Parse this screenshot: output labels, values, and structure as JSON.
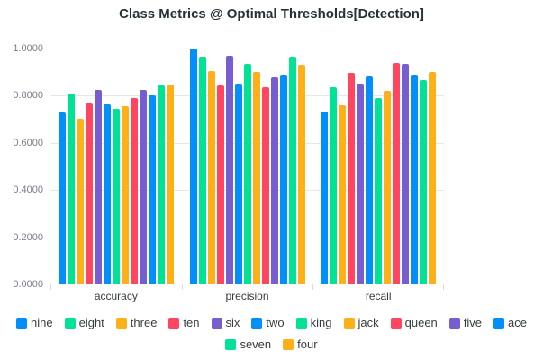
{
  "chart_data": {
    "type": "bar",
    "title": "Class Metrics @ Optimal Thresholds[Detection]",
    "categories": [
      "accuracy",
      "precision",
      "recall"
    ],
    "series": [
      {
        "name": "nine",
        "color": "#008FFB",
        "values": [
          0.729,
          1.0,
          0.733
        ]
      },
      {
        "name": "eight",
        "color": "#00E396",
        "values": [
          0.809,
          0.964,
          0.835
        ]
      },
      {
        "name": "three",
        "color": "#FEB019",
        "values": [
          0.704,
          0.906,
          0.758
        ]
      },
      {
        "name": "ten",
        "color": "#FF4560",
        "values": [
          0.767,
          0.842,
          0.898
        ]
      },
      {
        "name": "six",
        "color": "#775DD0",
        "values": [
          0.826,
          0.969,
          0.85
        ]
      },
      {
        "name": "two",
        "color": "#008FFB",
        "values": [
          0.763,
          0.85,
          0.88
        ]
      },
      {
        "name": "king",
        "color": "#00E396",
        "values": [
          0.744,
          0.936,
          0.789
        ]
      },
      {
        "name": "jack",
        "color": "#FEB019",
        "values": [
          0.756,
          0.902,
          0.822
        ]
      },
      {
        "name": "queen",
        "color": "#FF4560",
        "values": [
          0.792,
          0.835,
          0.939
        ]
      },
      {
        "name": "five",
        "color": "#775DD0",
        "values": [
          0.826,
          0.877,
          0.934
        ]
      },
      {
        "name": "ace",
        "color": "#008FFB",
        "values": [
          0.8,
          0.889,
          0.888
        ]
      },
      {
        "name": "seven",
        "color": "#00E396",
        "values": [
          0.843,
          0.967,
          0.868
        ]
      },
      {
        "name": "four",
        "color": "#FEB019",
        "values": [
          0.848,
          0.931,
          0.901
        ]
      }
    ],
    "y_ticks": [
      "1.0000",
      "0.8000",
      "0.6000",
      "0.4000",
      "0.2000",
      "0.0000"
    ],
    "ylim": [
      0,
      1
    ],
    "grid": true,
    "legend_position": "bottom",
    "palette": [
      "#008FFB",
      "#00E396",
      "#FEB019",
      "#FF4560",
      "#775DD0"
    ]
  },
  "colors": {
    "title_text": "#263238",
    "axis_label": "#373d3f",
    "tick_label": "#7b7b8b",
    "gridline": "#e7e7e7",
    "background": "#ffffff"
  }
}
